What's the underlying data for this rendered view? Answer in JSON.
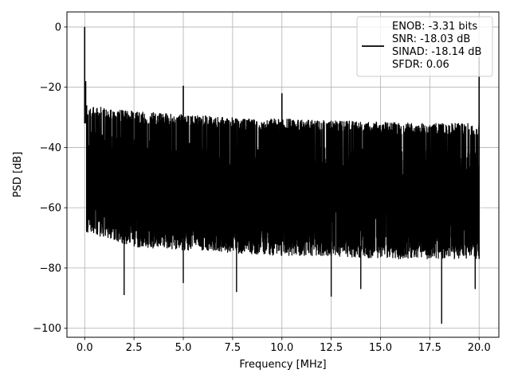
{
  "chart_data": {
    "type": "line",
    "title": "",
    "xlabel": "Frequency [MHz]",
    "ylabel": "PSD [dB]",
    "xlim": [
      -0.9,
      21.0
    ],
    "ylim": [
      -103.0,
      5.0
    ],
    "xticks": [
      0.0,
      2.5,
      5.0,
      7.5,
      10.0,
      12.5,
      15.0,
      17.5,
      20.0
    ],
    "xtick_labels": [
      "0.0",
      "2.5",
      "5.0",
      "7.5",
      "10.0",
      "12.5",
      "15.0",
      "17.5",
      "20.0"
    ],
    "yticks": [
      0,
      -20,
      -40,
      -60,
      -80,
      -100
    ],
    "ytick_labels": [
      "0",
      "−20",
      "−40",
      "−60",
      "−80",
      "−100"
    ],
    "grid": true,
    "legend_position": "upper right",
    "legend_lines": [
      "ENOB: -3.31 bits",
      "SNR: -18.03 dB",
      "SINAD: -18.14 dB",
      "SFDR: 0.06"
    ],
    "series": [
      {
        "color": "#000000",
        "noise_floor_top_db": [
          [
            0.1,
            -26
          ],
          [
            2.5,
            -28
          ],
          [
            5.0,
            -29
          ],
          [
            7.5,
            -30
          ],
          [
            10.0,
            -30.5
          ],
          [
            12.5,
            -31
          ],
          [
            15.0,
            -31.5
          ],
          [
            17.5,
            -32
          ],
          [
            20.0,
            -32
          ]
        ],
        "noise_floor_bottom_db": [
          [
            0.1,
            -68
          ],
          [
            2.5,
            -73
          ],
          [
            5.0,
            -74
          ],
          [
            7.5,
            -75
          ],
          [
            10.0,
            -76
          ],
          [
            12.5,
            -76
          ],
          [
            15.0,
            -77
          ],
          [
            17.5,
            -77
          ],
          [
            20.0,
            -77
          ]
        ],
        "peaks": [
          {
            "x": 0.0,
            "y": 0
          },
          {
            "x": 0.05,
            "y": -18
          },
          {
            "x": 5.0,
            "y": -19.5
          },
          {
            "x": 10.0,
            "y": -22
          },
          {
            "x": 20.0,
            "y": -10
          }
        ],
        "dips": [
          {
            "x": 2.0,
            "y": -89
          },
          {
            "x": 5.0,
            "y": -85
          },
          {
            "x": 7.7,
            "y": -88
          },
          {
            "x": 12.5,
            "y": -89.5
          },
          {
            "x": 14.0,
            "y": -87
          },
          {
            "x": 18.1,
            "y": -98.5
          },
          {
            "x": 19.8,
            "y": -87
          }
        ]
      }
    ]
  }
}
